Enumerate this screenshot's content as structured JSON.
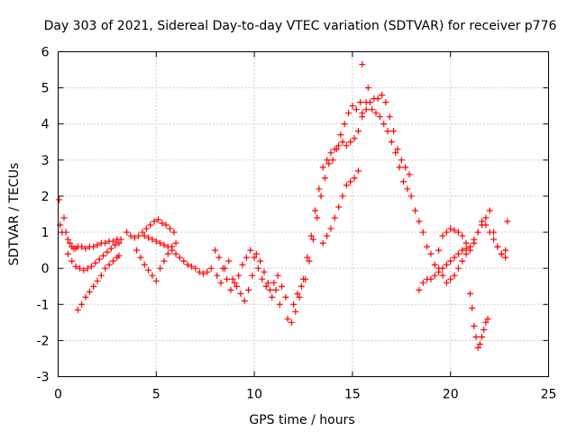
{
  "chart_data": {
    "type": "scatter",
    "title": "Day 303 of 2021, Sidereal Day-to-day VTEC variation (SDTVAR) for receiver p776",
    "xlabel": "GPS time / hours",
    "ylabel": "SDTVAR / TECUs",
    "xlim": [
      0,
      25
    ],
    "ylim": [
      -3,
      6
    ],
    "xticks": [
      0,
      5,
      10,
      15,
      20,
      25
    ],
    "yticks": [
      -3,
      -2,
      -1,
      0,
      1,
      2,
      3,
      4,
      5,
      6
    ],
    "grid": true,
    "marker": "plus",
    "series": [
      {
        "name": "SDTVAR",
        "color": "#ff0000",
        "x": [
          0.05,
          0.1,
          0.2,
          0.3,
          0.4,
          0.5,
          0.6,
          0.7,
          0.8,
          0.9,
          1.0,
          1.2,
          1.4,
          1.6,
          1.8,
          2.0,
          2.2,
          2.4,
          2.6,
          2.8,
          3.0,
          3.2,
          0.5,
          0.7,
          0.9,
          1.1,
          1.3,
          1.5,
          1.7,
          1.9,
          2.1,
          2.3,
          2.5,
          2.7,
          2.9,
          3.1,
          1.0,
          1.2,
          1.4,
          1.6,
          1.8,
          2.0,
          2.2,
          2.4,
          2.6,
          2.8,
          3.0,
          3.1,
          3.5,
          3.7,
          3.9,
          4.1,
          4.3,
          4.5,
          4.7,
          4.9,
          5.1,
          5.3,
          5.5,
          5.7,
          5.9,
          4.0,
          4.2,
          4.4,
          4.6,
          4.8,
          5.0,
          5.2,
          5.4,
          5.6,
          5.8,
          6.0,
          4.4,
          4.6,
          4.8,
          5.0,
          5.2,
          5.4,
          5.6,
          5.8,
          6.0,
          6.2,
          6.4,
          6.6,
          6.8,
          7.0,
          7.2,
          7.4,
          7.6,
          7.8,
          8.0,
          8.2,
          8.4,
          8.6,
          8.8,
          9.0,
          9.2,
          9.4,
          9.6,
          9.8,
          10.0,
          10.2,
          10.4,
          10.6,
          10.8,
          11.0,
          11.2,
          11.4,
          11.6,
          8.1,
          8.3,
          8.5,
          8.7,
          8.9,
          9.1,
          9.3,
          9.5,
          9.7,
          9.9,
          10.1,
          10.3,
          10.5,
          10.7,
          10.9,
          11.1,
          11.3,
          11.7,
          11.9,
          12.1,
          12.3,
          12.5,
          12.7,
          12.9,
          13.1,
          13.3,
          13.5,
          13.7,
          13.9,
          14.1,
          14.3,
          14.5,
          14.7,
          14.9,
          15.1,
          15.3,
          15.5,
          15.7,
          12.0,
          12.2,
          12.4,
          12.6,
          12.8,
          13.0,
          13.2,
          13.4,
          13.6,
          13.8,
          14.0,
          14.2,
          14.4,
          14.6,
          14.8,
          15.0,
          15.2,
          15.4,
          13.5,
          13.7,
          13.9,
          14.1,
          14.3,
          14.5,
          14.7,
          14.9,
          15.1,
          15.3,
          15.5,
          15.7,
          15.9,
          16.1,
          16.3,
          16.5,
          16.7,
          16.9,
          17.1,
          17.3,
          17.5,
          17.7,
          17.9,
          15.5,
          15.8,
          16.0,
          16.2,
          16.4,
          16.6,
          16.8,
          17.0,
          17.2,
          17.4,
          17.6,
          17.8,
          18.0,
          18.2,
          18.4,
          18.6,
          18.8,
          19.0,
          19.2,
          19.4,
          19.6,
          19.8,
          20.0,
          20.2,
          20.4,
          20.6,
          20.8,
          21.0,
          21.2,
          21.4,
          21.6,
          18.4,
          18.6,
          18.8,
          19.0,
          19.2,
          19.4,
          19.6,
          19.8,
          20.0,
          20.2,
          20.4,
          20.6,
          20.8,
          19.4,
          19.6,
          19.8,
          20.0,
          20.2,
          20.4,
          20.6,
          20.8,
          21.0,
          21.2,
          21.4,
          21.6,
          21.8,
          22.0,
          22.2,
          22.4,
          22.6,
          22.8,
          21.0,
          21.1,
          21.2,
          21.3,
          21.4,
          21.5,
          21.6,
          21.7,
          21.8,
          21.9,
          21.8,
          22.0,
          22.2,
          22.4,
          22.6,
          22.8,
          22.9
        ],
        "y": [
          1.9,
          1.2,
          1.0,
          1.4,
          1.0,
          0.8,
          0.7,
          0.6,
          0.55,
          0.55,
          0.6,
          0.6,
          0.55,
          0.6,
          0.6,
          0.65,
          0.7,
          0.7,
          0.75,
          0.75,
          0.8,
          0.8,
          0.4,
          0.2,
          0.05,
          0.0,
          -0.05,
          0.0,
          0.05,
          0.15,
          0.25,
          0.35,
          0.45,
          0.55,
          0.65,
          0.7,
          -1.15,
          -1.0,
          -0.8,
          -0.65,
          -0.5,
          -0.35,
          -0.2,
          0.0,
          0.1,
          0.2,
          0.3,
          0.35,
          1.0,
          0.9,
          0.85,
          0.9,
          1.0,
          1.1,
          1.2,
          1.3,
          1.35,
          1.25,
          1.2,
          1.1,
          1.0,
          0.5,
          0.3,
          0.1,
          -0.05,
          -0.2,
          -0.35,
          0.0,
          0.2,
          0.4,
          0.6,
          0.7,
          0.9,
          0.85,
          0.8,
          0.75,
          0.7,
          0.65,
          0.6,
          0.5,
          0.4,
          0.3,
          0.2,
          0.1,
          0.05,
          0.0,
          -0.1,
          -0.15,
          -0.1,
          0.0,
          0.5,
          0.3,
          0.0,
          -0.3,
          -0.6,
          -0.4,
          -0.2,
          0.1,
          0.3,
          0.5,
          0.3,
          0.0,
          -0.3,
          -0.5,
          -0.6,
          -0.4,
          -0.2,
          -0.5,
          -0.8,
          -0.2,
          -0.4,
          0.0,
          0.2,
          -0.3,
          -0.5,
          -0.7,
          -0.9,
          -0.6,
          -0.2,
          0.4,
          0.2,
          -0.1,
          -0.4,
          -0.8,
          -0.6,
          -1.0,
          -1.4,
          -1.5,
          -1.2,
          -0.8,
          -0.3,
          0.3,
          0.9,
          1.6,
          2.2,
          2.8,
          3.0,
          3.2,
          3.3,
          3.4,
          3.5,
          3.4,
          3.5,
          3.6,
          3.8,
          4.2,
          4.6,
          -1.0,
          -0.7,
          -0.5,
          -0.3,
          0.2,
          0.8,
          1.4,
          2.0,
          2.5,
          2.9,
          3.0,
          3.3,
          3.7,
          4.0,
          4.3,
          4.5,
          4.4,
          4.6,
          0.7,
          0.9,
          1.1,
          1.4,
          1.7,
          2.0,
          2.3,
          2.4,
          2.5,
          2.7,
          4.3,
          4.4,
          4.6,
          4.7,
          4.7,
          4.8,
          4.6,
          4.2,
          3.8,
          3.3,
          3.0,
          2.8,
          2.6,
          5.65,
          5.0,
          4.4,
          4.3,
          4.2,
          4.0,
          3.8,
          3.5,
          3.2,
          2.8,
          2.4,
          2.2,
          2.0,
          1.6,
          1.3,
          1.0,
          0.6,
          0.4,
          0.1,
          0.5,
          0.9,
          1.0,
          1.1,
          1.05,
          1.0,
          0.9,
          0.7,
          0.5,
          0.7,
          1.0,
          1.3,
          -0.6,
          -0.4,
          -0.3,
          -0.3,
          -0.2,
          -0.1,
          0.0,
          0.1,
          0.2,
          0.3,
          0.4,
          0.5,
          0.55,
          0.0,
          -0.2,
          -0.4,
          -0.3,
          -0.2,
          0.0,
          0.2,
          0.4,
          0.6,
          0.8,
          1.0,
          1.2,
          1.4,
          1.6,
          1.0,
          0.6,
          0.4,
          0.5,
          -0.7,
          -1.1,
          -1.6,
          -1.9,
          -2.2,
          -2.1,
          -1.9,
          -1.7,
          -1.5,
          -1.4,
          1.2,
          1.0,
          0.8,
          0.6,
          0.4,
          0.3,
          1.3
        ]
      }
    ]
  }
}
